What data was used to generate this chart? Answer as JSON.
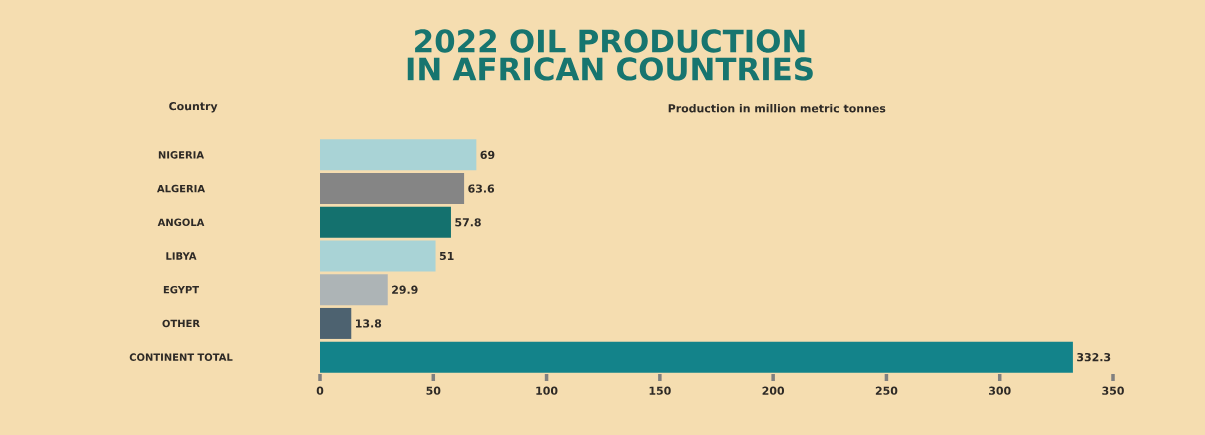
{
  "chart_data": {
    "type": "bar",
    "orientation": "horizontal",
    "title": "2022 OIL PRODUCTION IN AFRICAN COUNTRIES",
    "ylabel": "Country",
    "xlabel": "Production in million metric tonnes",
    "categories": [
      "NIGERIA",
      "ALGERIA",
      "ANGOLA",
      "LIBYA",
      "EGYPT",
      "OTHER",
      "CONTINENT TOTAL"
    ],
    "values": [
      69,
      63.6,
      57.8,
      51,
      29.9,
      13.8,
      332.3
    ],
    "colors": [
      "#a9d3d6",
      "#858585",
      "#14716e",
      "#a9d3d6",
      "#adb4b6",
      "#4d6270",
      "#13838a"
    ],
    "xlim": [
      0,
      350
    ],
    "xticks": [
      0,
      50,
      100,
      150,
      200,
      250,
      300,
      350
    ],
    "data_labels": true
  }
}
